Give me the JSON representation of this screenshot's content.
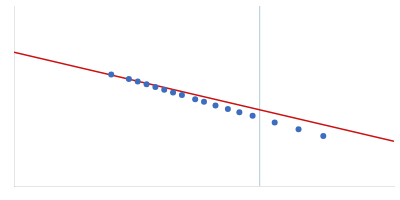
{
  "chart_data": {
    "type": "scatter",
    "xlim": [
      -0.05,
      0.38
    ],
    "ylim": [
      4.6,
      6.6
    ],
    "tick_labels": false,
    "grid": false,
    "series": [
      {
        "type": "vline",
        "color": "#b0ccdd",
        "x": [
          0.228
        ]
      },
      {
        "type": "line",
        "color": "#cc1111",
        "x": [
          -0.05,
          0.38
        ],
        "values": [
          6.085,
          5.096
        ]
      },
      {
        "type": "scatter",
        "color": "#3d6dbf",
        "x": [
          0.06,
          0.08,
          0.09,
          0.1,
          0.11,
          0.12,
          0.13,
          0.14,
          0.155,
          0.165,
          0.178,
          0.192,
          0.205,
          0.22,
          0.245,
          0.272,
          0.3
        ],
        "values": [
          5.84,
          5.79,
          5.76,
          5.73,
          5.7,
          5.67,
          5.64,
          5.61,
          5.565,
          5.535,
          5.495,
          5.455,
          5.42,
          5.38,
          5.305,
          5.23,
          5.155
        ]
      }
    ]
  }
}
